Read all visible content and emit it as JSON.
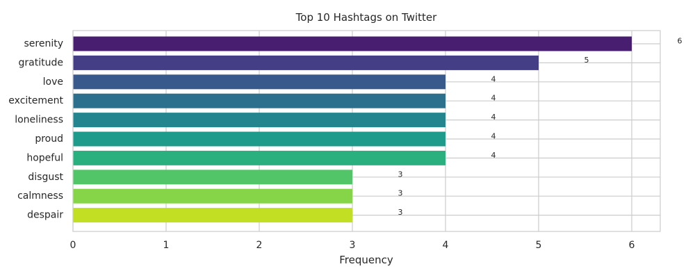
{
  "chart_data": {
    "type": "bar",
    "orientation": "horizontal",
    "title": "Top 10 Hashtags on Twitter",
    "xlabel": "Frequency",
    "ylabel": "",
    "categories": [
      "serenity",
      "gratitude",
      "love",
      "excitement",
      "loneliness",
      "proud",
      "hopeful",
      "disgust",
      "calmness",
      "despair"
    ],
    "values": [
      6,
      5,
      4,
      4,
      4,
      4,
      4,
      3,
      3,
      3
    ],
    "data_labels": [
      "6",
      "5",
      "4",
      "4",
      "4",
      "4",
      "4",
      "3",
      "3",
      "3"
    ],
    "xlim": [
      0,
      6.3
    ],
    "xticks": [
      0,
      1,
      2,
      3,
      4,
      5,
      6
    ],
    "xtick_labels": [
      "0",
      "1",
      "2",
      "3",
      "4",
      "5",
      "6"
    ],
    "grid": true,
    "colors": [
      "#481f70",
      "#433e85",
      "#38598c",
      "#2d708e",
      "#25858e",
      "#1e9b8a",
      "#2ab07f",
      "#52c569",
      "#86d549",
      "#c2df23"
    ]
  }
}
